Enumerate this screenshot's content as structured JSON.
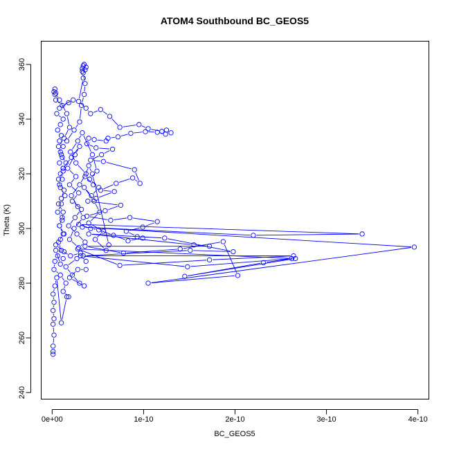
{
  "chart_data": {
    "type": "line",
    "title": "ATOM4 Southbound BC_GEOS5",
    "xlabel": "BC_GEOS5",
    "ylabel": "Theta (K)",
    "xlim": [
      -1.2e-11,
      4.12e-10
    ],
    "ylim": [
      237.6,
      368.5
    ],
    "x_ticks": [
      {
        "value": 0,
        "label": "0e+00"
      },
      {
        "value": 1e-10,
        "label": "1e-10"
      },
      {
        "value": 2e-10,
        "label": "2e-10"
      },
      {
        "value": 3e-10,
        "label": "3e-10"
      },
      {
        "value": 4e-10,
        "label": "4e-10"
      }
    ],
    "y_ticks": [
      {
        "value": 240,
        "label": "240"
      },
      {
        "value": 260,
        "label": "260"
      },
      {
        "value": 280,
        "label": "280"
      },
      {
        "value": 300,
        "label": "300"
      },
      {
        "value": 320,
        "label": "320"
      },
      {
        "value": 340,
        "label": "340"
      },
      {
        "value": 360,
        "label": "360"
      }
    ],
    "grid": false,
    "marker": "open-circle",
    "series": [
      {
        "color": "#0000ff",
        "points": [
          [
            1e-12,
            254
          ],
          [
            1e-12,
            255
          ],
          [
            1e-12,
            257
          ],
          [
            2e-12,
            261
          ],
          [
            1e-12,
            265
          ],
          [
            2e-12,
            267
          ],
          [
            1e-12,
            270
          ],
          [
            2e-12,
            273
          ],
          [
            1e-12,
            276
          ],
          [
            3e-12,
            279
          ],
          [
            5e-12,
            282
          ],
          [
            1e-11,
            265.5
          ],
          [
            1.6e-11,
            275
          ],
          [
            1.8e-11,
            275
          ],
          [
            1.2e-11,
            277
          ],
          [
            1.5e-11,
            280
          ],
          [
            9e-12,
            283
          ],
          [
            2e-12,
            285
          ],
          [
            3e-12,
            288
          ],
          [
            6e-12,
            290
          ],
          [
            1.2e-11,
            289
          ],
          [
            9e-12,
            287
          ],
          [
            4e-12,
            292
          ],
          [
            1.3e-11,
            291.5
          ],
          [
            4e-12,
            294
          ],
          [
            9e-12,
            296
          ],
          [
            1.3e-11,
            298
          ],
          [
            8e-12,
            301
          ],
          [
            1.1e-11,
            303
          ],
          [
            1.2e-11,
            306
          ],
          [
            7e-12,
            309
          ],
          [
            1e-11,
            311
          ],
          [
            1.3e-11,
            314
          ],
          [
            8e-12,
            316
          ],
          [
            1.1e-11,
            318
          ],
          [
            9e-12,
            320
          ],
          [
            1.2e-11,
            322
          ],
          [
            8e-12,
            324
          ],
          [
            1.1e-11,
            326
          ],
          [
            9e-12,
            328
          ],
          [
            1.2e-11,
            330
          ],
          [
            8e-12,
            332
          ],
          [
            1e-11,
            334
          ],
          [
            6e-12,
            336
          ],
          [
            9e-12,
            338
          ],
          [
            1.2e-11,
            340
          ],
          [
            5e-12,
            342
          ],
          [
            8e-12,
            344
          ],
          [
            1.8e-11,
            346
          ],
          [
            2.3e-11,
            347
          ],
          [
            1.1e-11,
            345
          ],
          [
            4e-12,
            347
          ],
          [
            3e-12,
            349
          ],
          [
            2e-12,
            350
          ],
          [
            3e-12,
            351
          ],
          [
            4e-12,
            349.5
          ],
          [
            8e-12,
            347
          ],
          [
            1.6e-11,
            342
          ],
          [
            1.9e-11,
            337
          ],
          [
            1.3e-11,
            333
          ],
          [
            7e-12,
            330
          ],
          [
            1e-11,
            327
          ],
          [
            1.5e-11,
            324
          ],
          [
            1.2e-11,
            321
          ],
          [
            7e-12,
            318
          ],
          [
            9e-12,
            315
          ],
          [
            1.4e-11,
            312
          ],
          [
            1e-11,
            309
          ],
          [
            6e-12,
            306
          ],
          [
            1.1e-11,
            304
          ],
          [
            8e-12,
            301
          ],
          [
            1.2e-11,
            298
          ],
          [
            7e-12,
            295
          ],
          [
            1e-11,
            292
          ],
          [
            2e-11,
            290
          ],
          [
            3.1e-11,
            291
          ],
          [
            2.7e-11,
            289
          ],
          [
            1.5e-11,
            286
          ],
          [
            2.2e-11,
            283
          ],
          [
            3e-11,
            280
          ],
          [
            3.5e-11,
            279
          ],
          [
            1.9e-11,
            282
          ],
          [
            2.8e-11,
            285
          ],
          [
            3.7e-11,
            285
          ]
        ]
      },
      {
        "color": "#0000ff",
        "points": [
          [
            1.6e-11,
            332
          ],
          [
            2.4e-11,
            336
          ],
          [
            3e-11,
            339
          ],
          [
            3.2e-11,
            345
          ],
          [
            3.5e-11,
            349
          ],
          [
            3.6e-11,
            353
          ],
          [
            3.4e-11,
            357
          ],
          [
            3.3e-11,
            358.5
          ],
          [
            3.4e-11,
            359.5
          ],
          [
            3.5e-11,
            360
          ],
          [
            3.7e-11,
            359
          ],
          [
            3.6e-11,
            358
          ],
          [
            3.3e-11,
            357.5
          ],
          [
            3.4e-11,
            355
          ],
          [
            2.9e-11,
            346.5
          ],
          [
            3.7e-11,
            344
          ],
          [
            4.2e-11,
            342
          ],
          [
            5.3e-11,
            343.5
          ],
          [
            6.3e-11,
            341
          ],
          [
            7.4e-11,
            337
          ],
          [
            9.5e-11,
            338
          ],
          [
            1.05e-10,
            336.5
          ],
          [
            1.2e-10,
            335.5
          ],
          [
            1.25e-10,
            336
          ],
          [
            1.3e-10,
            335
          ],
          [
            1.24e-10,
            334.5
          ],
          [
            1.15e-10,
            335.2
          ],
          [
            1.02e-10,
            335.4
          ],
          [
            8.6e-11,
            334.8
          ],
          [
            7.2e-11,
            333.5
          ],
          [
            6.1e-11,
            333
          ],
          [
            5.9e-11,
            332
          ],
          [
            4.6e-11,
            332.5
          ],
          [
            4e-11,
            333
          ],
          [
            3.8e-11,
            331
          ],
          [
            4.8e-11,
            329.5
          ],
          [
            6.6e-11,
            329
          ],
          [
            5.4e-11,
            327
          ],
          [
            4.2e-11,
            325
          ],
          [
            5.6e-11,
            324.5
          ],
          [
            9e-11,
            321.5
          ],
          [
            9.6e-11,
            316.5
          ],
          [
            8.8e-11,
            318.5
          ],
          [
            7e-11,
            316.5
          ],
          [
            5.3e-11,
            314
          ],
          [
            6.8e-11,
            313.5
          ],
          [
            4.8e-11,
            311
          ],
          [
            3.9e-11,
            310
          ],
          [
            7.5e-11,
            308.5
          ],
          [
            5.8e-11,
            306.5
          ],
          [
            3.8e-11,
            304.5
          ],
          [
            6.4e-11,
            303
          ],
          [
            8.5e-11,
            304
          ],
          [
            1.15e-10,
            302.5
          ],
          [
            9.9e-11,
            300.5
          ],
          [
            8.1e-11,
            299
          ],
          [
            9.3e-11,
            297
          ],
          [
            9.9e-11,
            296.5
          ],
          [
            8.3e-11,
            295.5
          ],
          [
            6.7e-11,
            297.5
          ],
          [
            5.1e-11,
            299.5
          ],
          [
            4.2e-11,
            300
          ],
          [
            2.9e-11,
            301.5
          ],
          [
            3.39e-10,
            298
          ],
          [
            2.2e-10,
            297.5
          ],
          [
            3.3e-11,
            300.5
          ],
          [
            3.96e-10,
            293.2
          ],
          [
            1.05e-10,
            280
          ],
          [
            2.03e-10,
            282.8
          ],
          [
            1.87e-10,
            295.2
          ],
          [
            1.4e-10,
            292.5
          ],
          [
            7.8e-11,
            291
          ],
          [
            3.6e-11,
            293.5
          ],
          [
            1.72e-10,
            293.5
          ],
          [
            1.55e-10,
            294
          ],
          [
            4e-11,
            298
          ],
          [
            1.23e-10,
            296.5
          ],
          [
            1.98e-10,
            291.5
          ],
          [
            1.51e-10,
            292
          ],
          [
            3.4e-11,
            290
          ],
          [
            2.64e-10,
            290
          ],
          [
            1.72e-10,
            288.5
          ],
          [
            7.4e-11,
            286.5
          ],
          [
            2.8e-11,
            292.5
          ],
          [
            2.66e-10,
            289
          ],
          [
            1.45e-10,
            282.5
          ],
          [
            2.31e-10,
            287.5
          ],
          [
            2.62e-10,
            289
          ],
          [
            1.48e-10,
            286
          ],
          [
            3.1e-11,
            290
          ],
          [
            3.7e-11,
            288
          ]
        ]
      },
      {
        "color": "#0000ff",
        "points": [
          [
            1.2e-11,
            322
          ],
          [
            2.1e-11,
            326
          ],
          [
            3e-11,
            330
          ],
          [
            2.5e-11,
            327
          ],
          [
            1.7e-11,
            322
          ],
          [
            2.6e-11,
            319
          ],
          [
            1.9e-11,
            316
          ],
          [
            2.9e-11,
            313
          ],
          [
            2.2e-11,
            310
          ],
          [
            3.2e-11,
            307
          ],
          [
            2.5e-11,
            304
          ],
          [
            1.8e-11,
            301
          ],
          [
            2.7e-11,
            298
          ],
          [
            3.6e-11,
            295
          ],
          [
            2.9e-11,
            293
          ],
          [
            1.9e-11,
            296
          ],
          [
            2.4e-11,
            300
          ],
          [
            3.4e-11,
            304
          ],
          [
            2.8e-11,
            308
          ],
          [
            2.1e-11,
            312
          ],
          [
            3e-11,
            316
          ],
          [
            3.7e-11,
            320
          ],
          [
            2.6e-11,
            324
          ],
          [
            2e-11,
            328
          ],
          [
            2.8e-11,
            332
          ],
          [
            3.3e-11,
            335
          ],
          [
            4.4e-11,
            327
          ],
          [
            4.9e-11,
            321
          ],
          [
            4.1e-11,
            318
          ],
          [
            5.1e-11,
            315
          ],
          [
            4.3e-11,
            312
          ],
          [
            3.5e-11,
            315
          ],
          [
            4.6e-11,
            310
          ],
          [
            5.2e-11,
            306
          ],
          [
            4e-11,
            302
          ],
          [
            5.6e-11,
            299
          ],
          [
            4.7e-11,
            296
          ],
          [
            5.9e-11,
            292
          ],
          [
            6.2e-11,
            294
          ],
          [
            4.4e-11,
            320
          ],
          [
            4e-11,
            323
          ],
          [
            3.6e-11,
            319
          ],
          [
            4.5e-11,
            316
          ]
        ]
      }
    ]
  }
}
